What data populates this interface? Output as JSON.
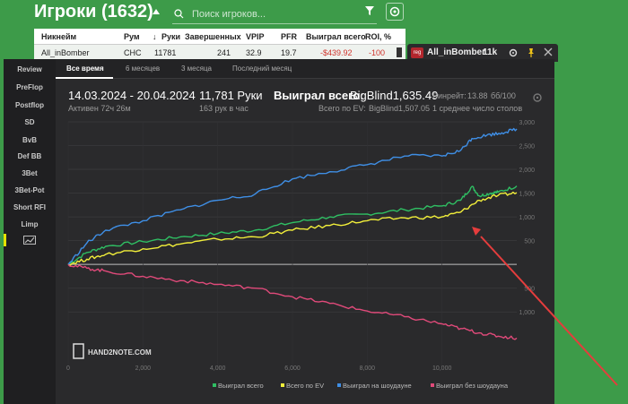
{
  "list": {
    "title": "Игроки (1632)",
    "search_placeholder": "Поиск игроков...",
    "columns": [
      "Никнейм",
      "Рум",
      "Руки",
      "Завершенных",
      "VPIP",
      "PFR",
      "Выиграл всего",
      "ROI, %"
    ],
    "row": {
      "nickname": "All_inBomber",
      "room": "CHC",
      "hands": "11781",
      "finished": "241",
      "vpip": "32.9",
      "pfr": "19.7",
      "won": "-$439.92",
      "roi": "-100"
    }
  },
  "popup": {
    "tag": "reg",
    "name": "All_inBomber",
    "hands": "11k"
  },
  "sidebar": {
    "items": [
      "Review",
      "PreFlop",
      "Postflop",
      "SD",
      "BvB",
      "Def BB",
      "3Bet",
      "3Bet-Pot",
      "Short RFI",
      "Limp"
    ]
  },
  "tabs": [
    "Все время",
    "6 месяцев",
    "3 месяца",
    "Последний месяц"
  ],
  "stats": {
    "date_range": "14.03.2024 - 20.04.2024",
    "active": "Активен 72ч 26м",
    "hands_big": "11,781 Руки",
    "hands_rate": "163 рук в час",
    "won_label": "Выиграл всего:",
    "won_value": "BigBlind1,635.49",
    "ev_label": "Всего по EV:",
    "ev_value": "BigBlind1,507.05",
    "winrate_label": "Винрейт:",
    "winrate_value": "13.88",
    "winrate_unit": "бб/100",
    "tables": "1 среднее число столов"
  },
  "logo": "HAND2NOTE.COM",
  "colors": {
    "green": "#2fbf63",
    "yellow": "#f2ef3a",
    "blue": "#3f8fe6",
    "pink": "#e04a7a",
    "accent": "#36c94a"
  },
  "chart_data": {
    "type": "line",
    "x_ticks": [
      "0",
      "2,000",
      "4,000",
      "6,000",
      "8,000",
      "10,000"
    ],
    "y_ticks": [
      "3,000",
      "2,500",
      "2,000",
      "1,500",
      "1,000",
      "500",
      "",
      "500",
      "1,000"
    ],
    "xlim": [
      0,
      12000
    ],
    "ylim": [
      -1900,
      3000
    ],
    "series": [
      {
        "name": "Выиграл всего",
        "color": "#2fbf63",
        "x": [
          0,
          500,
          1000,
          2000,
          3000,
          4000,
          5000,
          6000,
          7000,
          8000,
          9000,
          10000,
          10500,
          10800,
          11000,
          11300,
          11500,
          12000
        ],
        "y": [
          0,
          250,
          380,
          480,
          580,
          650,
          720,
          880,
          1000,
          1060,
          1150,
          1230,
          1350,
          1640,
          1440,
          1500,
          1520,
          1650
        ]
      },
      {
        "name": "Всего по EV",
        "color": "#f2ef3a",
        "x": [
          0,
          500,
          1000,
          2000,
          3000,
          4000,
          5000,
          6000,
          7000,
          8000,
          9000,
          10000,
          10500,
          11000,
          11500,
          12000
        ],
        "y": [
          0,
          110,
          210,
          330,
          430,
          530,
          580,
          720,
          820,
          920,
          980,
          1000,
          1100,
          1350,
          1450,
          1510
        ]
      },
      {
        "name": "Выиграл на шоудауне",
        "color": "#3f8fe6",
        "x": [
          0,
          500,
          1000,
          2000,
          3000,
          4000,
          5000,
          6000,
          7000,
          8000,
          9000,
          10000,
          10500,
          10800,
          11200,
          11600,
          12000
        ],
        "y": [
          0,
          450,
          720,
          920,
          1150,
          1350,
          1480,
          1800,
          1950,
          2100,
          2280,
          2280,
          2400,
          2650,
          2720,
          2770,
          2850
        ]
      },
      {
        "name": "Выиграл без шоудауна",
        "color": "#e04a7a",
        "x": [
          0,
          500,
          1000,
          2000,
          3000,
          4000,
          5000,
          6000,
          7000,
          8000,
          9000,
          10000,
          10500,
          11000,
          11500,
          12000
        ],
        "y": [
          0,
          -80,
          -140,
          -250,
          -340,
          -420,
          -500,
          -680,
          -820,
          -980,
          -1100,
          -1250,
          -1350,
          -1440,
          -1510,
          -1550
        ]
      }
    ]
  }
}
